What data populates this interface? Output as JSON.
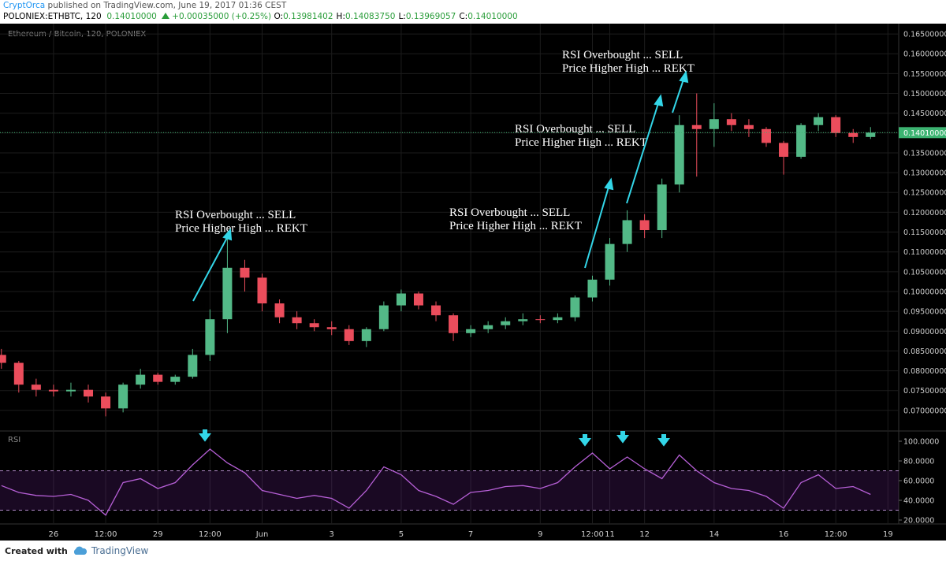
{
  "header": {
    "author": "CryptOrca",
    "published": "published on TradingView.com, June 19, 2017 01:36 CEST",
    "symbol": "POLONIEX:ETHBTC, 120",
    "price": "0.14010000",
    "change": "+0.00035000 (+0.25%)",
    "ohlc": [
      {
        "label": "O:",
        "value": "0.13981402"
      },
      {
        "label": "H:",
        "value": "0.14083750"
      },
      {
        "label": "L:",
        "value": "0.13969057"
      },
      {
        "label": "C:",
        "value": "0.14010000"
      }
    ]
  },
  "chart_data": [
    {
      "type": "candlestick",
      "title": "Ethereum / Bitcoin, 120, POLONIEX",
      "up_color": "#53b987",
      "down_color": "#eb4d5c",
      "x": [
        -1.5,
        -1,
        -0.5,
        0,
        0.5,
        1,
        1.5,
        2,
        2.5,
        3,
        3.5,
        4,
        4.5,
        5,
        5.5,
        6,
        6.5,
        7,
        7.5,
        8,
        8.5,
        9,
        9.5,
        10,
        10.5,
        11,
        11.5,
        12,
        12.5,
        13,
        13.5,
        14,
        14.5,
        15,
        15.5,
        16,
        16.5,
        17,
        17.5,
        18,
        18.5,
        19,
        19.5,
        20,
        20.5,
        21,
        21.5,
        22,
        22.5,
        23,
        23.5
      ],
      "open": [
        0.084,
        0.082,
        0.0765,
        0.0752,
        0.0748,
        0.0752,
        0.0735,
        0.0705,
        0.0765,
        0.079,
        0.0772,
        0.0785,
        0.084,
        0.093,
        0.106,
        0.1035,
        0.097,
        0.0935,
        0.092,
        0.091,
        0.0905,
        0.0875,
        0.0905,
        0.0965,
        0.0995,
        0.0965,
        0.094,
        0.0895,
        0.0905,
        0.0915,
        0.0925,
        0.093,
        0.0928,
        0.0935,
        0.0985,
        0.103,
        0.112,
        0.118,
        0.1155,
        0.127,
        0.142,
        0.141,
        0.1435,
        0.142,
        0.141,
        0.1375,
        0.134,
        0.142,
        0.144,
        0.14,
        0.139
      ],
      "high": [
        0.0855,
        0.0825,
        0.078,
        0.0765,
        0.077,
        0.0765,
        0.0745,
        0.077,
        0.0805,
        0.0795,
        0.079,
        0.0855,
        0.0955,
        0.114,
        0.108,
        0.1045,
        0.098,
        0.095,
        0.093,
        0.0925,
        0.0915,
        0.091,
        0.0975,
        0.1005,
        0.1,
        0.0975,
        0.0945,
        0.0915,
        0.0925,
        0.0935,
        0.0945,
        0.094,
        0.0945,
        0.099,
        0.104,
        0.1135,
        0.1205,
        0.1195,
        0.1285,
        0.1445,
        0.15,
        0.1475,
        0.145,
        0.1435,
        0.1415,
        0.138,
        0.1425,
        0.145,
        0.1445,
        0.141,
        0.1415
      ],
      "low": [
        0.0805,
        0.0745,
        0.0735,
        0.0735,
        0.0735,
        0.072,
        0.0685,
        0.0695,
        0.0755,
        0.0765,
        0.0765,
        0.078,
        0.0825,
        0.0895,
        0.1,
        0.095,
        0.092,
        0.0905,
        0.09,
        0.089,
        0.0865,
        0.086,
        0.09,
        0.095,
        0.0955,
        0.0925,
        0.0875,
        0.0885,
        0.0895,
        0.0905,
        0.0915,
        0.092,
        0.092,
        0.0925,
        0.0975,
        0.1015,
        0.11,
        0.1135,
        0.1135,
        0.125,
        0.129,
        0.1365,
        0.1405,
        0.139,
        0.1365,
        0.1295,
        0.1335,
        0.1405,
        0.139,
        0.1375,
        0.1385
      ],
      "close": [
        0.082,
        0.0765,
        0.0752,
        0.0748,
        0.0752,
        0.0735,
        0.0705,
        0.0765,
        0.079,
        0.0772,
        0.0785,
        0.084,
        0.093,
        0.106,
        0.1035,
        0.097,
        0.0935,
        0.092,
        0.091,
        0.0905,
        0.0875,
        0.0905,
        0.0965,
        0.0995,
        0.0965,
        0.094,
        0.0895,
        0.0905,
        0.0915,
        0.0925,
        0.093,
        0.0928,
        0.0935,
        0.0985,
        0.103,
        0.112,
        0.118,
        0.1155,
        0.127,
        0.142,
        0.141,
        0.1435,
        0.142,
        0.141,
        0.1375,
        0.134,
        0.142,
        0.144,
        0.14,
        0.139,
        0.1401
      ],
      "xlim": [
        -1.54,
        24.31
      ],
      "ylim": [
        0.0652,
        0.1676
      ],
      "xticks": [
        {
          "value": 0,
          "label": "26"
        },
        {
          "value": 1.5,
          "label": "12:00"
        },
        {
          "value": 3,
          "label": "29"
        },
        {
          "value": 4.5,
          "label": "12:00"
        },
        {
          "value": 6,
          "label": "Jun"
        },
        {
          "value": 8,
          "label": "3"
        },
        {
          "value": 10,
          "label": "5"
        },
        {
          "value": 12,
          "label": "7"
        },
        {
          "value": 14,
          "label": "9"
        },
        {
          "value": 15.5,
          "label": "12:00"
        },
        {
          "value": 16,
          "label": "11"
        },
        {
          "value": 17,
          "label": "12"
        },
        {
          "value": 19,
          "label": "14"
        },
        {
          "value": 21,
          "label": "16"
        },
        {
          "value": 22.5,
          "label": "12:00"
        },
        {
          "value": 24,
          "label": "19"
        }
      ],
      "yticks": [
        {
          "value": 0.07,
          "label": "0.07000000"
        },
        {
          "value": 0.075,
          "label": "0.07500000"
        },
        {
          "value": 0.08,
          "label": "0.08000000"
        },
        {
          "value": 0.085,
          "label": "0.08500000"
        },
        {
          "value": 0.09,
          "label": "0.09000000"
        },
        {
          "value": 0.095,
          "label": "0.09500000"
        },
        {
          "value": 0.1,
          "label": "0.10000000"
        },
        {
          "value": 0.105,
          "label": "0.10500000"
        },
        {
          "value": 0.11,
          "label": "0.11000000"
        },
        {
          "value": 0.115,
          "label": "0.11500000"
        },
        {
          "value": 0.12,
          "label": "0.12000000"
        },
        {
          "value": 0.125,
          "label": "0.12500000"
        },
        {
          "value": 0.13,
          "label": "0.13000000"
        },
        {
          "value": 0.135,
          "label": "0.13500000"
        },
        {
          "value": 0.14,
          "label": "0.14000000"
        },
        {
          "value": 0.145,
          "label": "0.14500000"
        },
        {
          "value": 0.15,
          "label": "0.15000000"
        },
        {
          "value": 0.155,
          "label": "0.15500000"
        },
        {
          "value": 0.16,
          "label": "0.16000000"
        },
        {
          "value": 0.165,
          "label": "0.16500000"
        }
      ],
      "last_price": {
        "value": 0.1401,
        "label": "0.14010000"
      },
      "annotations": [
        [
          "RSI Overbought ... SELL",
          "Price Higher High ... REKT"
        ],
        [
          "RSI Overbought ... SELL",
          "Price Higher High ... REKT"
        ],
        [
          "RSI Overbought ... SELL",
          "Price Higher High ... REKT"
        ],
        [
          "RSI Overbought ... SELL",
          "Price Higher High ... REKT"
        ]
      ]
    },
    {
      "type": "line",
      "title": "RSI",
      "color": "#b65fd6",
      "values": [
        55,
        48,
        45,
        44,
        46,
        40,
        25,
        58,
        62,
        52,
        58,
        76,
        92,
        78,
        68,
        50,
        46,
        42,
        45,
        42,
        32,
        50,
        74,
        66,
        50,
        44,
        36,
        48,
        50,
        54,
        55,
        52,
        58,
        74,
        88,
        72,
        84,
        72,
        62,
        86,
        70,
        58,
        52,
        50,
        44,
        32,
        58,
        66,
        52,
        54,
        46
      ],
      "ylim": [
        16,
        109.6
      ],
      "yticks": [
        {
          "value": 20,
          "label": "20.0000"
        },
        {
          "value": 40,
          "label": "40.0000"
        },
        {
          "value": 60,
          "label": "60.0000"
        },
        {
          "value": 80,
          "label": "80.0000"
        },
        {
          "value": 100,
          "label": "100.0000"
        }
      ],
      "bands": [
        30,
        70
      ]
    }
  ],
  "footer": {
    "created": "Created with",
    "brand": "TradingView"
  }
}
